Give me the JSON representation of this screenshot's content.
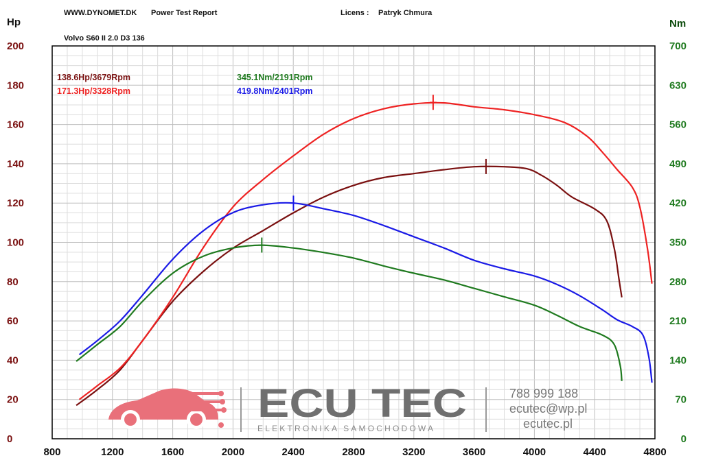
{
  "header": {
    "site": "WWW.DYNOMET.DK",
    "report": "Power Test Report",
    "license_label": "Licens :",
    "license_name": "Patryk Chmura",
    "vehicle": "Volvo S60 II 2.0 D3 136"
  },
  "branding": {
    "logo_text": "ECU TEC",
    "logo_subtitle": "ELEKTRONIKA SAMOCHODOWA",
    "phone": "788 999 188",
    "email": "ecutec@wp.pl",
    "website": "ecutec.pl",
    "logo_color": "#e9707a"
  },
  "chart_data": {
    "type": "line",
    "x_axis": {
      "range": [
        800,
        4800
      ],
      "ticks": [
        800,
        1200,
        1600,
        2000,
        2400,
        2800,
        3200,
        3600,
        4000,
        4400,
        4800
      ]
    },
    "y_axis_left": {
      "label": "Hp",
      "range": [
        0,
        200
      ],
      "ticks": [
        0,
        20,
        40,
        60,
        80,
        100,
        120,
        140,
        160,
        180,
        200
      ]
    },
    "y_axis_right": {
      "label": "Nm",
      "range": [
        0,
        700
      ],
      "ticks": [
        0,
        70,
        140,
        210,
        280,
        350,
        420,
        490,
        560,
        630,
        700
      ]
    },
    "grid": true,
    "peak_labels": [
      {
        "text": "138.6Hp/3679Rpm",
        "color": "#7a1010"
      },
      {
        "text": "171.3Hp/3328Rpm",
        "color": "#ee2222"
      },
      {
        "text": "345.1Nm/2191Rpm",
        "color": "#1f7a1f"
      },
      {
        "text": "419.8Nm/2401Rpm",
        "color": "#1a1ae6"
      }
    ],
    "series": [
      {
        "axis": "left",
        "color": "#7a1010",
        "peak": {
          "x": 3679,
          "y": 138.6
        },
        "points": [
          [
            960,
            17
          ],
          [
            1100,
            25
          ],
          [
            1250,
            35
          ],
          [
            1400,
            50
          ],
          [
            1600,
            70
          ],
          [
            1800,
            85
          ],
          [
            2000,
            97
          ],
          [
            2200,
            106
          ],
          [
            2400,
            115
          ],
          [
            2600,
            123
          ],
          [
            2800,
            129
          ],
          [
            3000,
            133
          ],
          [
            3200,
            135
          ],
          [
            3400,
            137
          ],
          [
            3600,
            138.5
          ],
          [
            3800,
            138.5
          ],
          [
            3950,
            137.5
          ],
          [
            4050,
            134
          ],
          [
            4150,
            129
          ],
          [
            4250,
            123
          ],
          [
            4400,
            117
          ],
          [
            4480,
            111
          ],
          [
            4530,
            97
          ],
          [
            4560,
            82
          ],
          [
            4580,
            72
          ]
        ]
      },
      {
        "axis": "left",
        "color": "#ee2222",
        "peak": {
          "x": 3328,
          "y": 171.3
        },
        "points": [
          [
            980,
            20
          ],
          [
            1100,
            27
          ],
          [
            1250,
            36
          ],
          [
            1400,
            50
          ],
          [
            1600,
            72
          ],
          [
            1800,
            97
          ],
          [
            2000,
            118
          ],
          [
            2200,
            132
          ],
          [
            2400,
            144
          ],
          [
            2600,
            155
          ],
          [
            2800,
            163
          ],
          [
            3000,
            168
          ],
          [
            3200,
            170.5
          ],
          [
            3400,
            171
          ],
          [
            3600,
            169
          ],
          [
            3800,
            167.5
          ],
          [
            4000,
            165
          ],
          [
            4200,
            161
          ],
          [
            4350,
            154
          ],
          [
            4450,
            146
          ],
          [
            4550,
            137
          ],
          [
            4650,
            128
          ],
          [
            4700,
            118
          ],
          [
            4750,
            97
          ],
          [
            4780,
            79
          ]
        ]
      },
      {
        "axis": "right",
        "color": "#1f7a1f",
        "peak": {
          "x": 2191,
          "y": 345.1
        },
        "points": [
          [
            960,
            138
          ],
          [
            1100,
            168
          ],
          [
            1250,
            200
          ],
          [
            1400,
            245
          ],
          [
            1600,
            295
          ],
          [
            1800,
            325
          ],
          [
            2000,
            340
          ],
          [
            2191,
            345
          ],
          [
            2400,
            340
          ],
          [
            2600,
            332
          ],
          [
            2800,
            322
          ],
          [
            3000,
            308
          ],
          [
            3200,
            295
          ],
          [
            3400,
            283
          ],
          [
            3600,
            268
          ],
          [
            3800,
            253
          ],
          [
            4000,
            238
          ],
          [
            4150,
            220
          ],
          [
            4300,
            200
          ],
          [
            4450,
            185
          ],
          [
            4530,
            168
          ],
          [
            4570,
            130
          ],
          [
            4580,
            103
          ]
        ]
      },
      {
        "axis": "right",
        "color": "#1a1ae6",
        "peak": {
          "x": 2401,
          "y": 419.8
        },
        "points": [
          [
            980,
            150
          ],
          [
            1100,
            175
          ],
          [
            1250,
            210
          ],
          [
            1400,
            256
          ],
          [
            1600,
            320
          ],
          [
            1800,
            370
          ],
          [
            2000,
            403
          ],
          [
            2200,
            417
          ],
          [
            2401,
            420
          ],
          [
            2600,
            410
          ],
          [
            2800,
            398
          ],
          [
            3000,
            380
          ],
          [
            3200,
            360
          ],
          [
            3400,
            340
          ],
          [
            3600,
            318
          ],
          [
            3800,
            303
          ],
          [
            4000,
            290
          ],
          [
            4150,
            275
          ],
          [
            4300,
            255
          ],
          [
            4450,
            230
          ],
          [
            4550,
            212
          ],
          [
            4650,
            200
          ],
          [
            4720,
            185
          ],
          [
            4760,
            145
          ],
          [
            4780,
            100
          ]
        ]
      }
    ]
  }
}
